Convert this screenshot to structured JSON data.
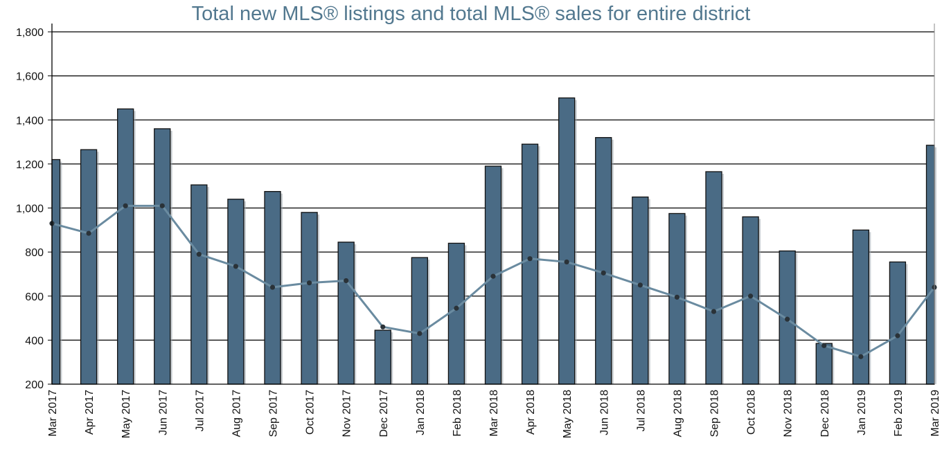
{
  "chart_data": {
    "type": "bar",
    "title": "Total new MLS® listings and total MLS® sales for entire district",
    "xlabel": "",
    "ylabel": "",
    "ylim": [
      200,
      1800
    ],
    "yticks": [
      "200",
      "400",
      "600",
      "800",
      "1,000",
      "1,200",
      "1,400",
      "1,600",
      "1,800"
    ],
    "grid": true,
    "categories": [
      "Mar 2017",
      "Apr 2017",
      "May 2017",
      "Jun 2017",
      "Jul 2017",
      "Aug 2017",
      "Sep 2017",
      "Oct 2017",
      "Nov 2017",
      "Dec 2017",
      "Jan 2018",
      "Feb 2018",
      "Mar 2018",
      "Apr 2018",
      "May 2018",
      "Jun 2018",
      "Jul 2018",
      "Aug 2018",
      "Sep 2018",
      "Oct 2018",
      "Nov 2018",
      "Dec 2018",
      "Jan 2019",
      "Feb 2019",
      "Mar 2019"
    ],
    "series": [
      {
        "name": "Total new MLS® listings",
        "kind": "bar",
        "color": "#4a6b85",
        "values": [
          1220,
          1265,
          1450,
          1360,
          1105,
          1040,
          1075,
          980,
          845,
          445,
          775,
          840,
          1190,
          1290,
          1500,
          1320,
          1050,
          975,
          1165,
          960,
          805,
          385,
          900,
          755,
          1285
        ]
      },
      {
        "name": "Total MLS® sales",
        "kind": "line",
        "color": "#6a8ba0",
        "values": [
          930,
          885,
          1010,
          1010,
          790,
          735,
          640,
          660,
          670,
          460,
          430,
          545,
          690,
          770,
          755,
          705,
          650,
          595,
          530,
          600,
          495,
          375,
          325,
          420,
          640
        ]
      }
    ]
  }
}
